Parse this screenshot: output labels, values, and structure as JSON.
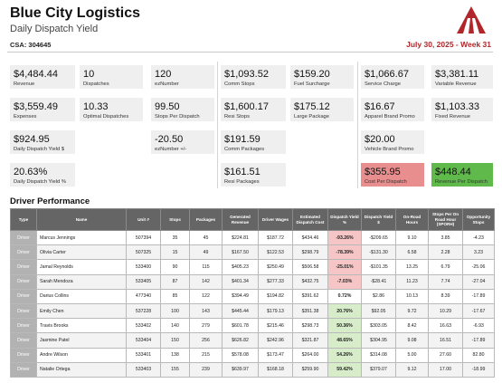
{
  "header": {
    "title": "Blue City Logistics",
    "subtitle": "Daily Dispatch Yield",
    "csa": "CSA: 304645",
    "date": "July 30, 2025 - Week 31"
  },
  "colors": {
    "accent": "#b0262a",
    "negative": "#e88e8e",
    "positive": "#5fba4b",
    "table_header": "#656565"
  },
  "kpis": {
    "revenue": {
      "value": "$4,484.44",
      "label": "Revenue"
    },
    "expenses": {
      "value": "$3,559.49",
      "label": "Expenses"
    },
    "dispatch_yield": {
      "value": "$924.95",
      "label": "Daily Dispatch Yield $"
    },
    "dispatch_yield_pct": {
      "value": "20.63%",
      "label": "Daily Dispatch Yield %"
    },
    "dispatches": {
      "value": "10",
      "label": "Dispatches"
    },
    "optimal_dispatches": {
      "value": "10.33",
      "label": "Optimal Dispatches"
    },
    "eznumber": {
      "value": "120",
      "label": "ezNumber"
    },
    "stops_per_dispatch": {
      "value": "99.50",
      "label": "Stops Per Dispatch"
    },
    "eznumber_delta": {
      "value": "-20.50",
      "label": "ezNumber +/-"
    },
    "comm_stops": {
      "value": "$1,093.52",
      "label": "Comm Stops"
    },
    "resi_stops": {
      "value": "$1,600.17",
      "label": "Resi Stops"
    },
    "comm_packages": {
      "value": "$191.59",
      "label": "Comm Packages"
    },
    "resi_packages": {
      "value": "$161.51",
      "label": "Resi Packages"
    },
    "fuel_surcharge": {
      "value": "$159.20",
      "label": "Fuel Surcharge"
    },
    "large_package": {
      "value": "$175.12",
      "label": "Large Package"
    },
    "service_charge": {
      "value": "$1,066.67",
      "label": "Service Charge"
    },
    "apparel_brand_promo": {
      "value": "$16.67",
      "label": "Apparel Brand Promo"
    },
    "vehicle_brand_promo": {
      "value": "$20.00",
      "label": "Vehicle Brand Promo"
    },
    "cost_per_dispatch": {
      "value": "$355.95",
      "label": "Cost Per Dispatch"
    },
    "variable_revenue": {
      "value": "$3,381.11",
      "label": "Variable Revenue"
    },
    "fixed_revenue": {
      "value": "$1,103.33",
      "label": "Fixed Revenue"
    },
    "revenue_per_dispatch": {
      "value": "$448.44",
      "label": "Revenue Per Dispatch"
    }
  },
  "driver_performance": {
    "title": "Driver Performance",
    "columns": [
      "Type",
      "Name",
      "Unit #",
      "Stops",
      "Packages",
      "Generated Revenue",
      "Driver Wages",
      "Estimated Dispatch Cost",
      "Dispatch Yield %",
      "Dispatch Yield $",
      "On-Road Hours",
      "Stops Per On Road Hour (SPORH)",
      "Opportunity Stops"
    ],
    "rows": [
      {
        "type": "Driver",
        "name": "Marcus Jennings",
        "unit": "507394",
        "stops": "35",
        "packages": "45",
        "revenue": "$224.81",
        "wages": "$187.72",
        "cost": "$434.46",
        "yield_pct": "-93.26%",
        "yield_usd": "-$209.65",
        "hours": "9.10",
        "sporh": "3.85",
        "opp_stops": "-4.23",
        "status": "neg"
      },
      {
        "type": "Driver",
        "name": "Olivia Carter",
        "unit": "507325",
        "stops": "15",
        "packages": "49",
        "revenue": "$167.50",
        "wages": "$122.53",
        "cost": "$298.79",
        "yield_pct": "-78.39%",
        "yield_usd": "-$131.30",
        "hours": "6.58",
        "sporh": "2.28",
        "opp_stops": "3.23",
        "status": "neg"
      },
      {
        "type": "Driver",
        "name": "Jamal Reynolds",
        "unit": "533400",
        "stops": "90",
        "packages": "115",
        "revenue": "$405.23",
        "wages": "$250.49",
        "cost": "$506.58",
        "yield_pct": "-25.01%",
        "yield_usd": "-$101.35",
        "hours": "13.25",
        "sporh": "6.79",
        "opp_stops": "-25.06",
        "status": "neg"
      },
      {
        "type": "Driver",
        "name": "Sarah Mendoza",
        "unit": "533405",
        "stops": "87",
        "packages": "142",
        "revenue": "$401.34",
        "wages": "$277.33",
        "cost": "$432.75",
        "yield_pct": "-7.03%",
        "yield_usd": "-$28.41",
        "hours": "11.23",
        "sporh": "7.74",
        "opp_stops": "-27.04",
        "status": "neg"
      },
      {
        "type": "Driver",
        "name": "Darius Collins",
        "unit": "477340",
        "stops": "85",
        "packages": "122",
        "revenue": "$394.49",
        "wages": "$194.82",
        "cost": "$391.62",
        "yield_pct": "0.72%",
        "yield_usd": "$2.86",
        "hours": "10.13",
        "sporh": "8.39",
        "opp_stops": "-17.89",
        "status": "neu"
      },
      {
        "type": "Driver",
        "name": "Emily Chen",
        "unit": "537228",
        "stops": "100",
        "packages": "143",
        "revenue": "$445.44",
        "wages": "$179.13",
        "cost": "$351.38",
        "yield_pct": "20.76%",
        "yield_usd": "$92.05",
        "hours": "9.72",
        "sporh": "10.29",
        "opp_stops": "-17.67",
        "status": "pos"
      },
      {
        "type": "Driver",
        "name": "Travis Brooks",
        "unit": "533402",
        "stops": "140",
        "packages": "279",
        "revenue": "$601.78",
        "wages": "$215.46",
        "cost": "$298.73",
        "yield_pct": "50.36%",
        "yield_usd": "$303.05",
        "hours": "8.42",
        "sporh": "16.63",
        "opp_stops": "-6.93",
        "status": "pos"
      },
      {
        "type": "Driver",
        "name": "Jasmine Patel",
        "unit": "533404",
        "stops": "150",
        "packages": "256",
        "revenue": "$626.82",
        "wages": "$242.96",
        "cost": "$321.87",
        "yield_pct": "48.65%",
        "yield_usd": "$304.95",
        "hours": "9.08",
        "sporh": "16.51",
        "opp_stops": "-17.89",
        "status": "pos"
      },
      {
        "type": "Driver",
        "name": "Andre Wilson",
        "unit": "533401",
        "stops": "138",
        "packages": "215",
        "revenue": "$578.08",
        "wages": "$173.47",
        "cost": "$264.00",
        "yield_pct": "54.26%",
        "yield_usd": "$314.08",
        "hours": "5.00",
        "sporh": "27.60",
        "opp_stops": "82.80",
        "status": "pos"
      },
      {
        "type": "Driver",
        "name": "Natalie Ortega",
        "unit": "533403",
        "stops": "155",
        "packages": "239",
        "revenue": "$639.97",
        "wages": "$168.18",
        "cost": "$259.90",
        "yield_pct": "59.42%",
        "yield_usd": "$379.07",
        "hours": "9.12",
        "sporh": "17.00",
        "opp_stops": "-18.99",
        "status": "pos"
      }
    ]
  }
}
